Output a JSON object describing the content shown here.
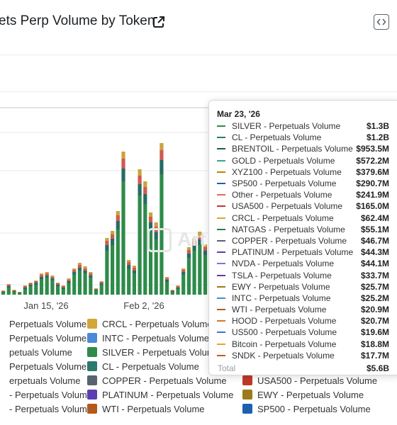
{
  "header": {
    "title": "ets Perp Volume by Token",
    "icons": [
      "external-link-icon",
      "embed-code-icon"
    ]
  },
  "watermark": "Art",
  "chart_data": {
    "type": "bar",
    "stacked": true,
    "title": "ets Perp Volume by Token",
    "x_tick_labels": [
      "Jan 15, '26",
      "Feb 2, '26"
    ],
    "grid": true,
    "colors": [
      "#2e8b4a",
      "#276b63",
      "#d05a52",
      "#c9a43a",
      "#3d6fb8",
      "#7a6a4a"
    ],
    "tooltip": {
      "date": "Mar 23, '26",
      "rows": [
        {
          "name": "SILVER - Perpetuals Volume",
          "value": "$1.3B",
          "color": "#2e8b4a"
        },
        {
          "name": "CL - Perpetuals Volume",
          "value": "$1.2B",
          "color": "#2a7a6e"
        },
        {
          "name": "BRENTOIL - Perpetuals Volume",
          "value": "$953.5M",
          "color": "#1b5e4a"
        },
        {
          "name": "GOLD - Perpetuals Volume",
          "value": "$572.2M",
          "color": "#3aa58a"
        },
        {
          "name": "XYZ100 - Perpetuals Volume",
          "value": "$379.6M",
          "color": "#b8860b"
        },
        {
          "name": "SP500 - Perpetuals Volume",
          "value": "$290.7M",
          "color": "#1f5fae"
        },
        {
          "name": "Other - Perpetuals Volume",
          "value": "$241.9M",
          "color": "#e06a5a"
        },
        {
          "name": "USA500 - Perpetuals Volume",
          "value": "$165.0M",
          "color": "#c0392b"
        },
        {
          "name": "CRCL - Perpetuals Volume",
          "value": "$62.4M",
          "color": "#d4a63a"
        },
        {
          "name": "NATGAS - Perpetuals Volume",
          "value": "$55.1M",
          "color": "#2d7d46"
        },
        {
          "name": "COPPER - Perpetuals Volume",
          "value": "$46.7M",
          "color": "#5a6270"
        },
        {
          "name": "PLATINUM - Perpetuals Volume",
          "value": "$44.3M",
          "color": "#5b3fb0"
        },
        {
          "name": "NVDA - Perpetuals Volume",
          "value": "$44.1M",
          "color": "#8a6fd0"
        },
        {
          "name": "TSLA - Perpetuals Volume",
          "value": "$33.7M",
          "color": "#6a3a9a"
        },
        {
          "name": "EWY - Perpetuals Volume",
          "value": "$25.7M",
          "color": "#9a7a1a"
        },
        {
          "name": "INTC - Perpetuals Volume",
          "value": "$25.2M",
          "color": "#4a8ad8"
        },
        {
          "name": "WTI - Perpetuals Volume",
          "value": "$20.9M",
          "color": "#b35a1a"
        },
        {
          "name": "HOOD - Perpetuals Volume",
          "value": "$20.7M",
          "color": "#d07a2a"
        },
        {
          "name": "US500 - Perpetuals Volume",
          "value": "$19.6M",
          "color": "#3a78c8"
        },
        {
          "name": "Bitcoin - Perpetuals Volume",
          "value": "$18.8M",
          "color": "#f0a030"
        },
        {
          "name": "SNDK - Perpetuals Volume",
          "value": "$17.7M",
          "color": "#c05a1a"
        }
      ],
      "total_label": "Total",
      "total_value": "$5.6B"
    },
    "legend_placement": "bottom",
    "legend": [
      {
        "name": "Perpetuals Volume",
        "color": "#c9a43a"
      },
      {
        "name": "CRCL - Perpetuals Volume",
        "color": "#d4a63a"
      },
      {
        "name": "Perpetuals Volume",
        "color": "#3d7fd0"
      },
      {
        "name": "INTC - Perpetuals Volume",
        "color": "#4a8ad8"
      },
      {
        "name": "petuals Volume",
        "color": "#2e8b4a"
      },
      {
        "name": "SILVER - Perpetuals Volume",
        "color": "#2e8b4a"
      },
      {
        "name": "Perpetuals Volume",
        "color": "#1b5e4a"
      },
      {
        "name": "CL - Perpetuals Volume",
        "color": "#2a7a6e"
      },
      {
        "name": "erpetuals Volume",
        "color": "#6a3a9a"
      },
      {
        "name": "COPPER - Perpetuals Volume",
        "color": "#5a6270"
      },
      {
        "name": "USA500 - Perpetuals Volume",
        "color": "#c0392b"
      },
      {
        "name": "- Perpetuals Volume",
        "color": "#b8860b"
      },
      {
        "name": "PLATINUM - Perpetuals Volume",
        "color": "#5b3fb0"
      },
      {
        "name": "EWY - Perpetuals Volume",
        "color": "#9a7a1a"
      },
      {
        "name": "- Perpetuals Volume",
        "color": "#2d7d46"
      },
      {
        "name": "WTI - Perpetuals Volume",
        "color": "#b35a1a"
      },
      {
        "name": "SP500 - Perpetuals Volume",
        "color": "#1f5fae"
      }
    ],
    "bars": [
      [
        3,
        1,
        1,
        1
      ],
      [
        10,
        2,
        2,
        1
      ],
      [
        4,
        1,
        1,
        1
      ],
      [
        2,
        1,
        0,
        1
      ],
      [
        8,
        2,
        2,
        1
      ],
      [
        12,
        2,
        2,
        1
      ],
      [
        14,
        3,
        2,
        1
      ],
      [
        22,
        3,
        3,
        2
      ],
      [
        24,
        3,
        3,
        2
      ],
      [
        20,
        3,
        2,
        2
      ],
      [
        12,
        2,
        2,
        1
      ],
      [
        8,
        2,
        2,
        1
      ],
      [
        16,
        3,
        2,
        2
      ],
      [
        28,
        4,
        3,
        2
      ],
      [
        34,
        4,
        4,
        3
      ],
      [
        30,
        4,
        3,
        3
      ],
      [
        24,
        3,
        3,
        2
      ],
      [
        6,
        1,
        1,
        1
      ],
      [
        14,
        2,
        2,
        1
      ],
      [
        62,
        8,
        6,
        4
      ],
      [
        70,
        9,
        6,
        5
      ],
      [
        92,
        12,
        8,
        6
      ],
      [
        160,
        18,
        14,
        10
      ],
      [
        36,
        6,
        4,
        3
      ],
      [
        30,
        4,
        4,
        3
      ],
      [
        140,
        16,
        12,
        9
      ],
      [
        128,
        14,
        10,
        8
      ],
      [
        90,
        12,
        8,
        6
      ],
      [
        78,
        10,
        8,
        6
      ],
      [
        170,
        20,
        14,
        10
      ],
      [
        18,
        3,
        2,
        2
      ],
      [
        4,
        1,
        1,
        1
      ],
      [
        8,
        2,
        2,
        1
      ],
      [
        28,
        4,
        3,
        2
      ],
      [
        52,
        6,
        5,
        4
      ],
      [
        62,
        8,
        6,
        4
      ],
      [
        70,
        8,
        6,
        5
      ],
      [
        56,
        6,
        5,
        4
      ]
    ]
  }
}
